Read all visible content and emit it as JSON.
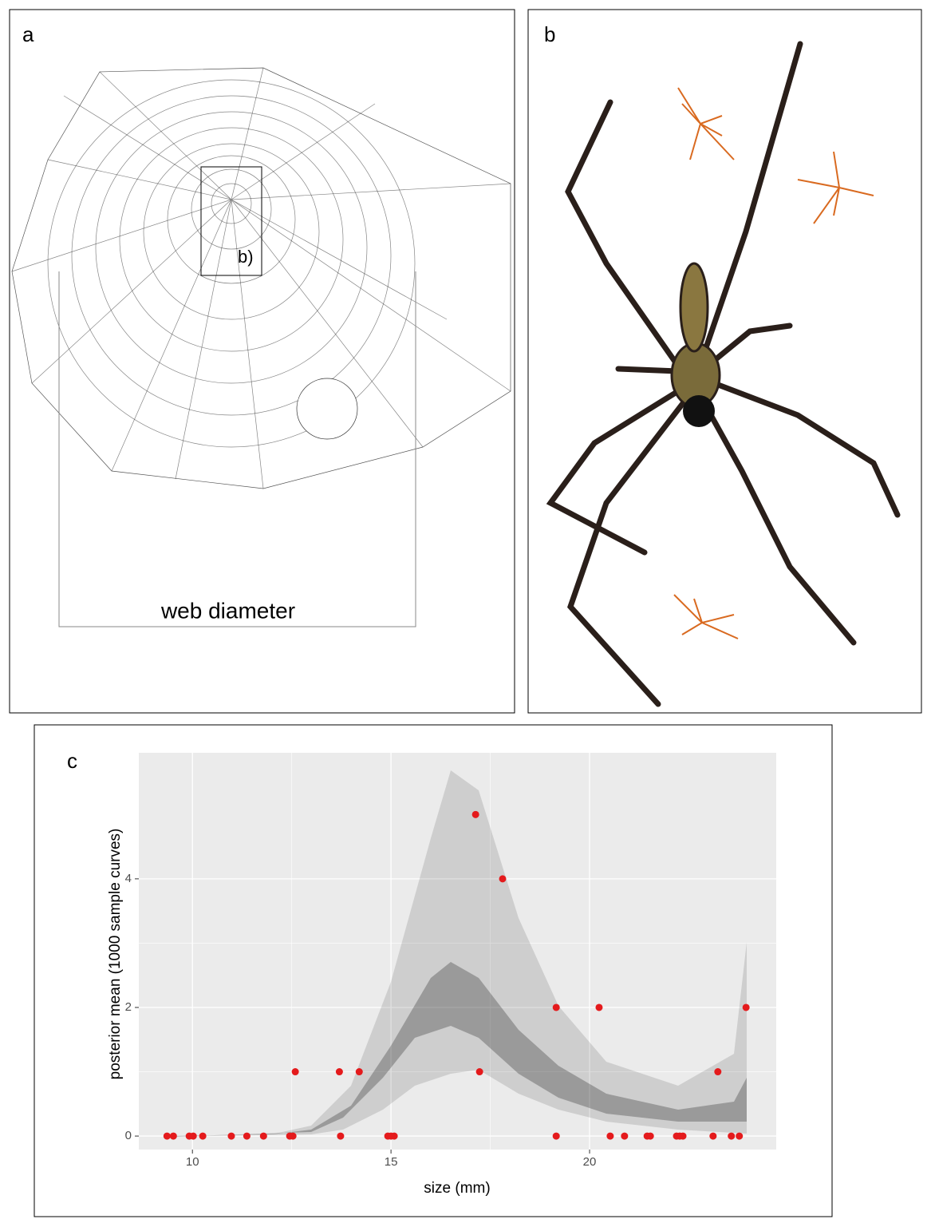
{
  "panels": {
    "a": {
      "label": "a",
      "inset_label": "b)",
      "caption": "web diameter"
    },
    "b": {
      "label": "b"
    },
    "c": {
      "label": "c"
    }
  },
  "chart_data": {
    "type": "scatter",
    "xlabel": "size (mm)",
    "ylabel": "posterior mean (1000 sample curves)",
    "color": "#e41a1c",
    "grid": true,
    "xlim": [
      8.65,
      24.7
    ],
    "ylim": [
      -0.21,
      5.96
    ],
    "xticks": [
      10,
      15,
      20
    ],
    "yticks": [
      0,
      2,
      4
    ],
    "x": [
      9.36,
      9.52,
      9.92,
      10.02,
      10.26,
      10.98,
      11.37,
      11.79,
      12.45,
      12.53,
      12.59,
      13.7,
      13.73,
      14.2,
      14.92,
      15.0,
      15.08,
      17.13,
      17.23,
      17.81,
      19.16,
      19.16,
      20.24,
      20.52,
      20.88,
      21.45,
      21.53,
      22.19,
      22.27,
      22.35,
      23.11,
      23.23,
      23.57,
      23.77,
      23.94
    ],
    "values": [
      0,
      0,
      0,
      0,
      0,
      0,
      0,
      0,
      0,
      0,
      1,
      1,
      0,
      1,
      0,
      0,
      0,
      5,
      1,
      4,
      0,
      2,
      2,
      0,
      0,
      0,
      0,
      0,
      0,
      0,
      0,
      1,
      0,
      0,
      2
    ]
  }
}
